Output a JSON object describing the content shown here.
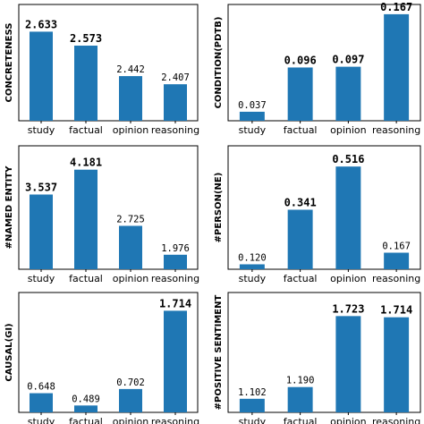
{
  "chart_data": [
    {
      "type": "bar",
      "categories": [
        "study",
        "factual",
        "opinion",
        "reasoning"
      ],
      "values": [
        2.633,
        2.573,
        2.442,
        2.407
      ],
      "labels": [
        "2.633",
        "2.573",
        "2.442",
        "2.407"
      ],
      "bold": [
        true,
        true,
        false,
        false
      ],
      "ylabel": "CONCRETENESS",
      "ylim": [
        2.25,
        2.75
      ],
      "color": "#1f77b4"
    },
    {
      "type": "bar",
      "categories": [
        "study",
        "factual",
        "opinion",
        "reasoning"
      ],
      "values": [
        0.037,
        0.096,
        0.097,
        0.167
      ],
      "labels": [
        "0.037",
        "0.096",
        "0.097",
        "0.167"
      ],
      "bold": [
        false,
        true,
        true,
        true
      ],
      "ylabel": "CONDITION(PDTB)",
      "ylim": [
        0.025,
        0.18
      ],
      "color": "#1f77b4"
    },
    {
      "type": "bar",
      "categories": [
        "study",
        "factual",
        "opinion",
        "reasoning"
      ],
      "values": [
        3.537,
        4.181,
        2.725,
        1.976
      ],
      "labels": [
        "3.537",
        "4.181",
        "2.725",
        "1.976"
      ],
      "bold": [
        true,
        true,
        false,
        false
      ],
      "ylabel": "#NAMED ENTITY",
      "ylim": [
        1.6,
        4.8
      ],
      "color": "#1f77b4"
    },
    {
      "type": "bar",
      "categories": [
        "study",
        "factual",
        "opinion",
        "reasoning"
      ],
      "values": [
        0.12,
        0.341,
        0.516,
        0.167
      ],
      "labels": [
        "0.120",
        "0.341",
        "0.516",
        "0.167"
      ],
      "bold": [
        false,
        true,
        true,
        false
      ],
      "ylabel": "#PERSON(NE)",
      "ylim": [
        0.1,
        0.6
      ],
      "color": "#1f77b4"
    },
    {
      "type": "bar",
      "categories": [
        "study",
        "factual",
        "opinion",
        "reasoning"
      ],
      "values": [
        0.648,
        0.489,
        0.702,
        1.714
      ],
      "labels": [
        "0.648",
        "0.489",
        "0.702",
        "1.714"
      ],
      "bold": [
        false,
        false,
        false,
        true
      ],
      "ylabel": "CAUSAL(GI)",
      "ylim": [
        0.4,
        1.95
      ],
      "color": "#1f77b4"
    },
    {
      "type": "bar",
      "categories": [
        "study",
        "factual",
        "opinion",
        "reasoning"
      ],
      "values": [
        1.102,
        1.19,
        1.723,
        1.714
      ],
      "labels": [
        "1.102",
        "1.190",
        "1.723",
        "1.714"
      ],
      "bold": [
        false,
        false,
        true,
        true
      ],
      "ylabel": "#POSITIVE SENTIMENT",
      "ylim": [
        1.0,
        1.9
      ],
      "color": "#1f77b4"
    }
  ]
}
